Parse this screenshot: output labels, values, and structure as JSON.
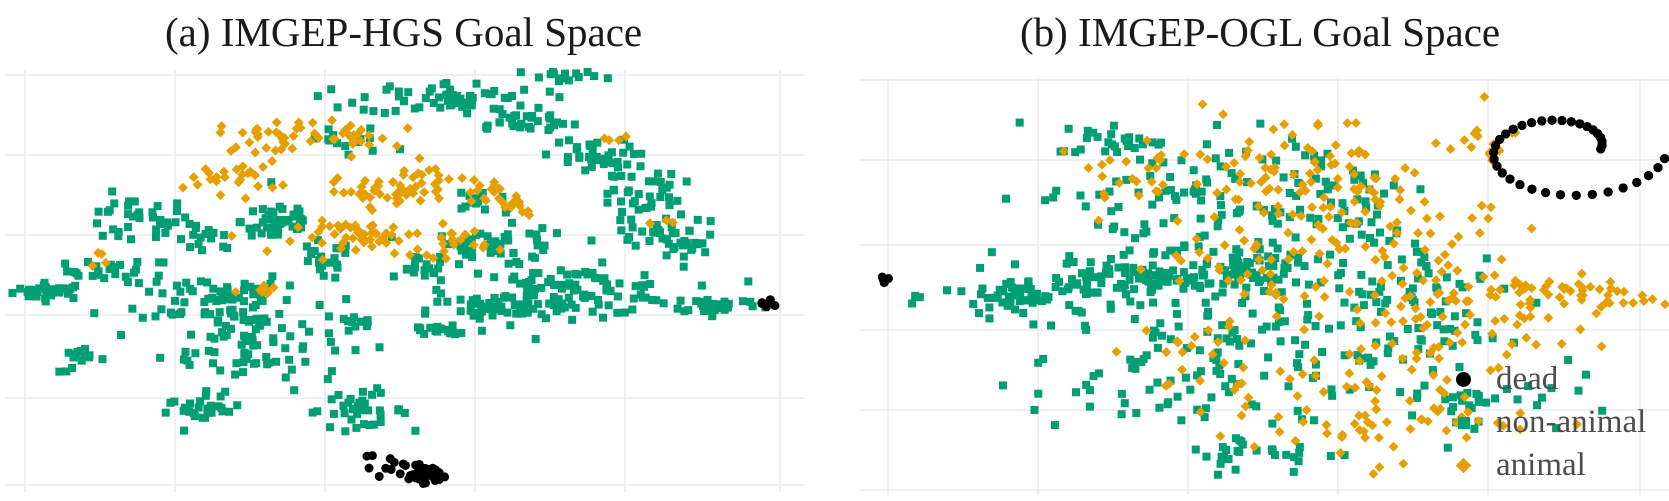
{
  "chart_data": [
    {
      "type": "scatter",
      "title": "(a) IMGEP-HGS Goal Space",
      "xlabel": "",
      "ylabel": "",
      "grid": true,
      "axis_tick_labels": "none",
      "xlim": [
        -1,
        1
      ],
      "ylim": [
        -1,
        1
      ],
      "series": [
        {
          "name": "non-animal",
          "color": "#009E73",
          "marker": "square",
          "clusters": [
            {
              "x": -0.93,
              "y": -0.05,
              "spread": [
                0.05,
                0.02
              ],
              "count": 30
            },
            {
              "x": -0.75,
              "y": 0.05,
              "spread": [
                0.07,
                0.03
              ],
              "count": 25
            },
            {
              "x": -0.72,
              "y": 0.3,
              "spread": [
                0.08,
                0.06
              ],
              "count": 35
            },
            {
              "x": -0.52,
              "y": 0.2,
              "spread": [
                0.04,
                0.04
              ],
              "count": 15
            },
            {
              "x": -0.5,
              "y": -0.08,
              "spread": [
                0.1,
                0.07
              ],
              "count": 60
            },
            {
              "x": -0.4,
              "y": -0.3,
              "spread": [
                0.12,
                0.12
              ],
              "count": 90
            },
            {
              "x": -0.53,
              "y": -0.65,
              "spread": [
                0.05,
                0.03
              ],
              "count": 25
            },
            {
              "x": -0.13,
              "y": -0.65,
              "spread": [
                0.07,
                0.04
              ],
              "count": 35
            },
            {
              "x": -0.85,
              "y": -0.4,
              "spread": [
                0.03,
                0.03
              ],
              "count": 15
            },
            {
              "x": -0.33,
              "y": 0.3,
              "spread": [
                0.05,
                0.06
              ],
              "count": 45
            },
            {
              "x": -0.22,
              "y": 0.1,
              "spread": [
                0.04,
                0.05
              ],
              "count": 20
            },
            {
              "x": -0.12,
              "y": -0.22,
              "spread": [
                0.03,
                0.02
              ],
              "count": 10
            },
            {
              "x": 0.05,
              "y": 0.05,
              "spread": [
                0.03,
                0.03
              ],
              "count": 15
            },
            {
              "x": 0.25,
              "y": 0.17,
              "spread": [
                0.1,
                0.05
              ],
              "count": 50
            },
            {
              "x": 0.43,
              "y": -0.05,
              "spread": [
                0.15,
                0.06
              ],
              "count": 110
            },
            {
              "x": 0.22,
              "y": -0.15,
              "spread": [
                0.08,
                0.04
              ],
              "count": 35
            },
            {
              "x": 0.1,
              "y": -0.25,
              "spread": [
                0.06,
                0.02
              ],
              "count": 20
            },
            {
              "x": 0.82,
              "y": -0.12,
              "spread": [
                0.06,
                0.02
              ],
              "count": 30
            },
            {
              "x": 0.12,
              "y": 0.92,
              "spread": [
                0.12,
                0.04
              ],
              "count": 60
            },
            {
              "x": 0.3,
              "y": 0.8,
              "spread": [
                0.08,
                0.03
              ],
              "count": 30
            },
            {
              "x": 0.48,
              "y": 0.62,
              "spread": [
                0.06,
                0.05
              ],
              "count": 35
            },
            {
              "x": 0.63,
              "y": 0.4,
              "spread": [
                0.05,
                0.1
              ],
              "count": 45
            },
            {
              "x": 0.72,
              "y": 0.2,
              "spread": [
                0.06,
                0.05
              ],
              "count": 35
            },
            {
              "x": 0.43,
              "y": 1.02,
              "spread": [
                0.06,
                0.02
              ],
              "count": 15
            },
            {
              "x": -0.15,
              "y": 0.7,
              "spread": [
                0.06,
                0.04
              ],
              "count": 15
            },
            {
              "x": 0.2,
              "y": 0.4,
              "spread": [
                0.05,
                0.04
              ],
              "count": 15
            }
          ]
        },
        {
          "name": "animal",
          "color": "#E69F00",
          "marker": "diamond",
          "clusters": [
            {
              "x": -0.45,
              "y": 0.52,
              "spread": [
                0.06,
                0.04
              ],
              "count": 25
            },
            {
              "x": -0.35,
              "y": 0.73,
              "spread": [
                0.07,
                0.04
              ],
              "count": 30
            },
            {
              "x": -0.15,
              "y": 0.72,
              "spread": [
                0.06,
                0.04
              ],
              "count": 25
            },
            {
              "x": -0.05,
              "y": 0.45,
              "spread": [
                0.08,
                0.03
              ],
              "count": 40
            },
            {
              "x": -0.08,
              "y": 0.22,
              "spread": [
                0.1,
                0.04
              ],
              "count": 50
            },
            {
              "x": 0.12,
              "y": 0.2,
              "spread": [
                0.05,
                0.04
              ],
              "count": 20
            },
            {
              "x": 0.2,
              "y": 0.45,
              "spread": [
                0.03,
                0.03
              ],
              "count": 12
            },
            {
              "x": 0.3,
              "y": 0.38,
              "spread": [
                0.03,
                0.03
              ],
              "count": 12
            },
            {
              "x": 0.05,
              "y": 0.52,
              "spread": [
                0.05,
                0.04
              ],
              "count": 15
            },
            {
              "x": -0.8,
              "y": 0.12,
              "spread": [
                0.02,
                0.02
              ],
              "count": 4
            },
            {
              "x": -0.35,
              "y": -0.05,
              "spread": [
                0.04,
                0.02
              ],
              "count": 8
            },
            {
              "x": 0.55,
              "y": 0.7,
              "spread": [
                0.02,
                0.02
              ],
              "count": 4
            },
            {
              "x": 0.65,
              "y": 0.3,
              "spread": [
                0.02,
                0.02
              ],
              "count": 4
            }
          ]
        },
        {
          "name": "dead",
          "color": "#000000",
          "marker": "circle",
          "clusters": [
            {
              "x": 0.05,
              "y": -0.97,
              "spread": [
                0.02,
                0.02
              ],
              "count": 45
            },
            {
              "x": -0.05,
              "y": -0.93,
              "spread": [
                0.05,
                0.05
              ],
              "count": 12
            },
            {
              "x": 0.95,
              "y": -0.12,
              "spread": [
                0.01,
                0.01
              ],
              "count": 6
            }
          ]
        }
      ]
    },
    {
      "type": "scatter",
      "title": "(b) IMGEP-OGL Goal Space",
      "xlabel": "",
      "ylabel": "",
      "grid": true,
      "axis_tick_labels": "none",
      "xlim": [
        -1,
        1
      ],
      "ylim": [
        -1,
        1
      ],
      "legend": {
        "position": "bottom-right",
        "entries": [
          "dead",
          "non-animal",
          "animal"
        ]
      },
      "series": [
        {
          "name": "non-animal",
          "color": "#009E73",
          "marker": "square",
          "clusters": [
            {
              "x": -0.6,
              "y": -0.05,
              "spread": [
                0.12,
                0.06
              ],
              "count": 70
            },
            {
              "x": -0.3,
              "y": 0.03,
              "spread": [
                0.14,
                0.05
              ],
              "count": 90
            },
            {
              "x": -0.05,
              "y": 0.12,
              "spread": [
                0.1,
                0.05
              ],
              "count": 50
            },
            {
              "x": -0.25,
              "y": 0.45,
              "spread": [
                0.18,
                0.18
              ],
              "count": 90
            },
            {
              "x": -0.25,
              "y": -0.45,
              "spread": [
                0.18,
                0.18
              ],
              "count": 80
            },
            {
              "x": 0.2,
              "y": -0.2,
              "spread": [
                0.2,
                0.2
              ],
              "count": 90
            },
            {
              "x": 0.15,
              "y": 0.45,
              "spread": [
                0.15,
                0.18
              ],
              "count": 60
            },
            {
              "x": 0.45,
              "y": -0.05,
              "spread": [
                0.12,
                0.15
              ],
              "count": 40
            },
            {
              "x": -0.4,
              "y": 0.75,
              "spread": [
                0.07,
                0.04
              ],
              "count": 25
            },
            {
              "x": 0.0,
              "y": -0.85,
              "spread": [
                0.12,
                0.05
              ],
              "count": 30
            },
            {
              "x": 0.55,
              "y": -0.55,
              "spread": [
                0.12,
                0.1
              ],
              "count": 35
            }
          ]
        },
        {
          "name": "animal",
          "color": "#E69F00",
          "marker": "diamond",
          "clusters": [
            {
              "x": 0.05,
              "y": 0.6,
              "spread": [
                0.15,
                0.15
              ],
              "count": 70
            },
            {
              "x": 0.3,
              "y": 0.3,
              "spread": [
                0.15,
                0.15
              ],
              "count": 70
            },
            {
              "x": 0.4,
              "y": -0.2,
              "spread": [
                0.15,
                0.15
              ],
              "count": 60
            },
            {
              "x": 0.25,
              "y": -0.65,
              "spread": [
                0.2,
                0.12
              ],
              "count": 70
            },
            {
              "x": 0.65,
              "y": -0.05,
              "spread": [
                0.1,
                0.1
              ],
              "count": 40
            },
            {
              "x": 0.85,
              "y": -0.05,
              "spread": [
                0.08,
                0.04
              ],
              "count": 25
            },
            {
              "x": -0.05,
              "y": 0.1,
              "spread": [
                0.12,
                0.12
              ],
              "count": 30
            },
            {
              "x": -0.35,
              "y": 0.55,
              "spread": [
                0.1,
                0.1
              ],
              "count": 25
            },
            {
              "x": 0.55,
              "y": 0.75,
              "spread": [
                0.06,
                0.06
              ],
              "count": 15
            },
            {
              "x": -0.2,
              "y": -0.4,
              "spread": [
                0.1,
                0.1
              ],
              "count": 20
            }
          ]
        },
        {
          "name": "dead",
          "color": "#000000",
          "marker": "circle",
          "shape": "ring-cluster",
          "clusters": [
            {
              "x": 0.78,
              "y": 0.7,
              "radius": [
                0.27,
                0.28
              ],
              "count": 210
            },
            {
              "x": -0.99,
              "y": 0.03,
              "spread": [
                0.01,
                0.01
              ],
              "count": 6
            }
          ]
        }
      ]
    }
  ]
}
